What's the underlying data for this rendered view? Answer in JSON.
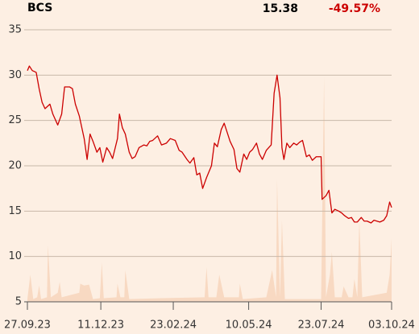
{
  "header": {
    "ticker": "BCS",
    "price": 15.38,
    "change": {
      "value": -49.57,
      "label": "-49.57%"
    }
  },
  "chart_data": {
    "type": "line",
    "xlim": [
      0,
      372
    ],
    "xticks": [
      {
        "value": 0,
        "label": "27.09.23"
      },
      {
        "value": 75,
        "label": "11.12.23"
      },
      {
        "value": 149,
        "label": "23.02.24"
      },
      {
        "value": 226,
        "label": "10.05.24"
      },
      {
        "value": 300,
        "label": "23.07.24"
      },
      {
        "value": 372,
        "label": "03.10.24"
      }
    ],
    "ylim": [
      5,
      35
    ],
    "yticks": [
      5,
      10,
      15,
      20,
      25,
      30,
      35
    ],
    "grid": true,
    "x": [
      0,
      2,
      5,
      9,
      12,
      15,
      18,
      23,
      26,
      31,
      35,
      38,
      43,
      46,
      49,
      53,
      58,
      61,
      64,
      67,
      71,
      74,
      77,
      81,
      84,
      87,
      92,
      94,
      97,
      100,
      104,
      107,
      110,
      114,
      119,
      122,
      125,
      128,
      133,
      137,
      142,
      146,
      151,
      155,
      158,
      163,
      166,
      170,
      173,
      176,
      179,
      183,
      188,
      191,
      194,
      198,
      201,
      204,
      207,
      211,
      214,
      217,
      221,
      224,
      227,
      230,
      234,
      237,
      240,
      244,
      249,
      252,
      255,
      258,
      260,
      262,
      265,
      268,
      272,
      275,
      278,
      281,
      285,
      288,
      291,
      295,
      300,
      301,
      305,
      308,
      311,
      314,
      318,
      321,
      324,
      328,
      331,
      334,
      337,
      341,
      344,
      347,
      351,
      354,
      357,
      360,
      364,
      367,
      370,
      372
    ],
    "series": [
      {
        "color": "#cc0000",
        "values": [
          30.5,
          31,
          30.5,
          30.3,
          28.5,
          27,
          26.3,
          26.8,
          25.7,
          24.5,
          25.7,
          28.7,
          28.7,
          28.5,
          26.8,
          25.5,
          23,
          20.7,
          23.5,
          22.7,
          21.5,
          22,
          20.4,
          22,
          21.5,
          20.8,
          23,
          25.7,
          24.2,
          23.5,
          21.5,
          20.8,
          21,
          22,
          22.3,
          22.2,
          22.7,
          22.8,
          23.3,
          22.3,
          22.5,
          23,
          22.8,
          21.7,
          21.5,
          20.7,
          20.3,
          20.9,
          19,
          19.2,
          17.5,
          18.7,
          20,
          22.5,
          22.1,
          24,
          24.7,
          23.7,
          22.7,
          21.8,
          19.7,
          19.3,
          21.3,
          20.7,
          21.5,
          21.8,
          22.5,
          21.3,
          20.7,
          21.7,
          22.3,
          28,
          30,
          27.5,
          22,
          20.7,
          22.5,
          22,
          22.5,
          22.3,
          22.6,
          22.8,
          21,
          21.2,
          20.6,
          21,
          21,
          16.3,
          16.7,
          17.3,
          14.8,
          15.2,
          15,
          14.8,
          14.5,
          14.2,
          14.3,
          13.8,
          13.8,
          14.3,
          13.9,
          13.9,
          13.7,
          14,
          13.9,
          13.8,
          14,
          14.5,
          16,
          15.4
        ]
      }
    ],
    "area": {
      "color": "#f8d9c2",
      "x": [
        0,
        3,
        6,
        10,
        12,
        14,
        20,
        21,
        24,
        31,
        33,
        35,
        53,
        54,
        58,
        63,
        67,
        74,
        76,
        78,
        91,
        92,
        95,
        99,
        100,
        104,
        137,
        181,
        183,
        185,
        193,
        196,
        201,
        216,
        217,
        220,
        244,
        250,
        254,
        255,
        258,
        260,
        263,
        300,
        303,
        305,
        309,
        311,
        314,
        321,
        323,
        328,
        332,
        334,
        337,
        339,
        342,
        367,
        370,
        372
      ],
      "values": [
        5.3,
        8,
        5.3,
        5.5,
        6.8,
        5.3,
        5.5,
        11.2,
        5.5,
        6,
        7.2,
        5.5,
        6,
        7,
        6.8,
        6.9,
        5.3,
        5.4,
        9.3,
        5.4,
        5.5,
        7,
        5.5,
        5.5,
        8.5,
        5.3,
        5.4,
        5.5,
        8.8,
        5.5,
        5.5,
        8,
        5.5,
        5.5,
        7,
        5.3,
        5.5,
        8.5,
        5.5,
        18.5,
        5.5,
        14,
        5.3,
        5.3,
        29.8,
        5.5,
        8,
        10.5,
        5.5,
        5.5,
        6.7,
        5.5,
        5.5,
        7.5,
        5.5,
        14,
        5.5,
        6,
        8,
        12
      ]
    }
  }
}
